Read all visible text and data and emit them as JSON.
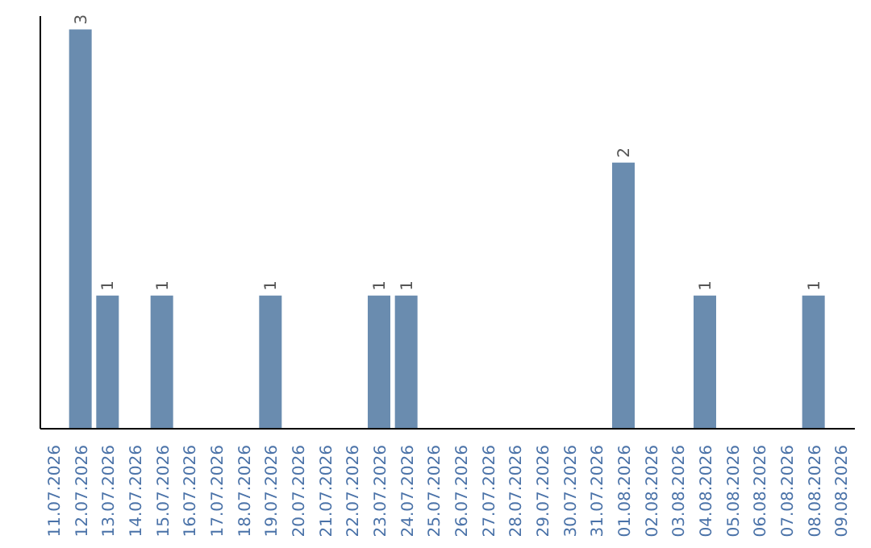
{
  "chart_data": {
    "type": "bar",
    "categories": [
      "11.07.2026",
      "12.07.2026",
      "13.07.2026",
      "14.07.2026",
      "15.07.2026",
      "16.07.2026",
      "17.07.2026",
      "18.07.2026",
      "19.07.2026",
      "20.07.2026",
      "21.07.2026",
      "22.07.2026",
      "23.07.2026",
      "24.07.2026",
      "25.07.2026",
      "26.07.2026",
      "27.07.2026",
      "28.07.2026",
      "29.07.2026",
      "30.07.2026",
      "31.07.2026",
      "01.08.2026",
      "02.08.2026",
      "03.08.2026",
      "04.08.2026",
      "05.08.2026",
      "06.08.2026",
      "07.08.2026",
      "08.08.2026",
      "09.08.2026"
    ],
    "values": [
      0,
      3,
      1,
      0,
      1,
      0,
      0,
      0,
      1,
      0,
      0,
      0,
      1,
      1,
      0,
      0,
      0,
      0,
      0,
      0,
      0,
      2,
      0,
      0,
      1,
      0,
      0,
      0,
      1,
      0
    ],
    "value_labels": [
      null,
      "3",
      "1",
      null,
      "1",
      null,
      null,
      null,
      "1",
      null,
      null,
      null,
      "1",
      "1",
      null,
      null,
      null,
      null,
      null,
      null,
      null,
      "2",
      null,
      null,
      "1",
      null,
      null,
      null,
      "1",
      null
    ],
    "color": "#6a8caf",
    "ylim": [
      0,
      3.1
    ],
    "tick_labels": "x",
    "grid": false,
    "legend": false
  }
}
